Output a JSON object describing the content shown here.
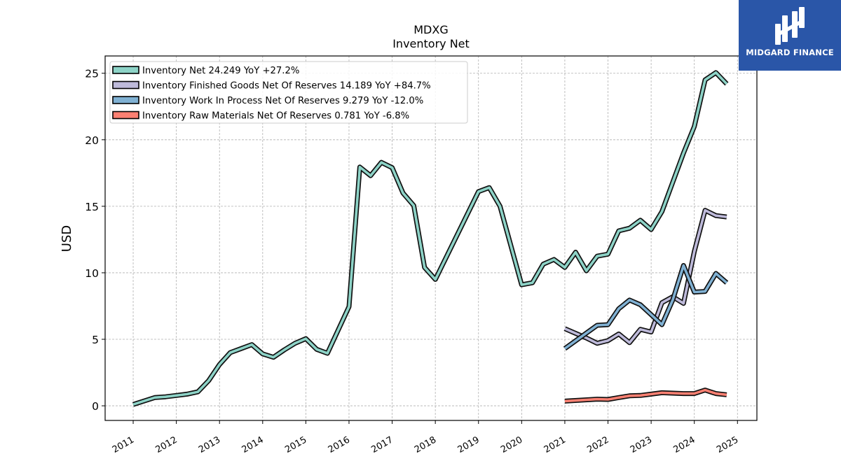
{
  "brand": {
    "name": "MIDGARD FINANCE",
    "color": "#2a56a8"
  },
  "chart_data": {
    "type": "line",
    "title": "MDXG",
    "subtitle": "Inventory Net",
    "xlabel": "",
    "ylabel": "USD",
    "x_ticks": [
      "2011",
      "2012",
      "2013",
      "2014",
      "2015",
      "2016",
      "2017",
      "2018",
      "2019",
      "2020",
      "2021",
      "2022",
      "2023",
      "2024",
      "2025"
    ],
    "y_ticks": [
      0,
      5,
      10,
      15,
      20,
      25
    ],
    "xlim": [
      2010.35,
      2025.45
    ],
    "ylim": [
      -1.1,
      26.3
    ],
    "grid": true,
    "legend_position": "top-left",
    "series": [
      {
        "name": "Inventory Net  24.249 YoY +27.2%",
        "color": "#8dd3c7",
        "points": [
          [
            2011.0,
            0.1
          ],
          [
            2011.5,
            0.62
          ],
          [
            2011.75,
            0.68
          ],
          [
            2012.0,
            0.78
          ],
          [
            2012.25,
            0.88
          ],
          [
            2012.5,
            1.05
          ],
          [
            2012.75,
            1.9
          ],
          [
            2013.0,
            3.1
          ],
          [
            2013.25,
            4.0
          ],
          [
            2013.5,
            4.3
          ],
          [
            2013.75,
            4.6
          ],
          [
            2014.0,
            3.9
          ],
          [
            2014.25,
            3.65
          ],
          [
            2014.5,
            4.2
          ],
          [
            2014.75,
            4.7
          ],
          [
            2015.0,
            5.05
          ],
          [
            2015.25,
            4.25
          ],
          [
            2015.5,
            3.95
          ],
          [
            2016.0,
            7.45
          ],
          [
            2016.25,
            17.95
          ],
          [
            2016.5,
            17.3
          ],
          [
            2016.75,
            18.3
          ],
          [
            2017.0,
            17.9
          ],
          [
            2017.25,
            16.0
          ],
          [
            2017.5,
            15.05
          ],
          [
            2017.75,
            10.4
          ],
          [
            2018.0,
            9.5
          ],
          [
            2019.0,
            16.1
          ],
          [
            2019.25,
            16.4
          ],
          [
            2019.5,
            15.0
          ],
          [
            2020.0,
            9.1
          ],
          [
            2020.25,
            9.25
          ],
          [
            2020.5,
            10.65
          ],
          [
            2020.75,
            11.0
          ],
          [
            2021.0,
            10.4
          ],
          [
            2021.25,
            11.55
          ],
          [
            2021.5,
            10.15
          ],
          [
            2021.75,
            11.25
          ],
          [
            2022.0,
            11.4
          ],
          [
            2022.25,
            13.15
          ],
          [
            2022.5,
            13.35
          ],
          [
            2022.75,
            13.95
          ],
          [
            2023.0,
            13.25
          ],
          [
            2023.25,
            14.6
          ],
          [
            2023.5,
            16.8
          ],
          [
            2023.75,
            19.0
          ],
          [
            2024.0,
            21.0
          ],
          [
            2024.25,
            24.5
          ],
          [
            2024.5,
            25.05
          ],
          [
            2024.75,
            24.2
          ]
        ]
      },
      {
        "name": "Inventory Finished Goods Net Of Reserves  14.189 YoY +84.7%",
        "color": "#bebada",
        "points": [
          [
            2021.0,
            5.8
          ],
          [
            2021.5,
            5.1
          ],
          [
            2021.75,
            4.7
          ],
          [
            2022.0,
            4.9
          ],
          [
            2022.25,
            5.4
          ],
          [
            2022.5,
            4.75
          ],
          [
            2022.75,
            5.75
          ],
          [
            2023.0,
            5.55
          ],
          [
            2023.25,
            7.75
          ],
          [
            2023.5,
            8.2
          ],
          [
            2023.75,
            7.7
          ],
          [
            2024.0,
            11.6
          ],
          [
            2024.25,
            14.7
          ],
          [
            2024.5,
            14.3
          ],
          [
            2024.75,
            14.2
          ]
        ]
      },
      {
        "name": "Inventory Work In Process Net Of Reserves  9.279 YoY -12.0%",
        "color": "#80b1d3",
        "points": [
          [
            2021.0,
            4.3
          ],
          [
            2021.75,
            6.05
          ],
          [
            2022.0,
            6.1
          ],
          [
            2022.25,
            7.3
          ],
          [
            2022.5,
            7.95
          ],
          [
            2022.75,
            7.6
          ],
          [
            2023.0,
            6.85
          ],
          [
            2023.25,
            6.1
          ],
          [
            2023.5,
            7.95
          ],
          [
            2023.75,
            10.55
          ],
          [
            2024.0,
            8.55
          ],
          [
            2024.25,
            8.6
          ],
          [
            2024.5,
            9.95
          ],
          [
            2024.75,
            9.25
          ]
        ]
      },
      {
        "name": "Inventory Raw Materials Net Of Reserves  0.781 YoY -6.8%",
        "color": "#fb8072",
        "points": [
          [
            2021.0,
            0.35
          ],
          [
            2021.75,
            0.5
          ],
          [
            2022.0,
            0.48
          ],
          [
            2022.25,
            0.62
          ],
          [
            2022.5,
            0.75
          ],
          [
            2022.75,
            0.78
          ],
          [
            2023.0,
            0.88
          ],
          [
            2023.25,
            0.98
          ],
          [
            2023.5,
            0.95
          ],
          [
            2023.75,
            0.92
          ],
          [
            2024.0,
            0.92
          ],
          [
            2024.25,
            1.18
          ],
          [
            2024.5,
            0.92
          ],
          [
            2024.75,
            0.83
          ]
        ]
      }
    ]
  }
}
